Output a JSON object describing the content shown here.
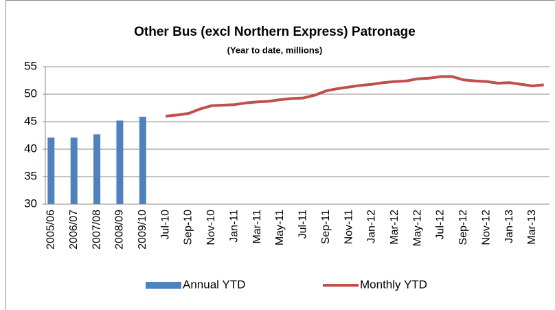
{
  "chart_data": {
    "type": "combo",
    "title": "Other Bus (excl Northern Express) Patronage",
    "subtitle": "(Year to date, millions)",
    "categories": [
      "2005/06",
      null,
      "2006/07",
      null,
      "2007/08",
      null,
      "2008/09",
      null,
      "2009/10",
      null,
      "Jul-10",
      null,
      "Sep-10",
      null,
      "Nov-10",
      null,
      "Jan-11",
      null,
      "Mar-11",
      null,
      "May-11",
      null,
      "Jul-11",
      null,
      "Sep-11",
      null,
      "Nov-11",
      null,
      "Jan-12",
      null,
      "Mar-12",
      null,
      "May-12",
      null,
      "Jul-12",
      null,
      "Sep-12",
      null,
      "Nov-12",
      null,
      "Jan-13",
      null,
      "Mar-13",
      null
    ],
    "series": [
      {
        "name": "Annual YTD",
        "type": "bar",
        "color": "#4f81bd",
        "values": [
          42.1,
          null,
          42.1,
          null,
          42.7,
          null,
          45.2,
          null,
          45.9,
          null,
          null,
          null,
          null,
          null,
          null,
          null,
          null,
          null,
          null,
          null,
          null,
          null,
          null,
          null,
          null,
          null,
          null,
          null,
          null,
          null,
          null,
          null,
          null,
          null,
          null,
          null,
          null,
          null,
          null,
          null,
          null,
          null,
          null,
          null
        ]
      },
      {
        "name": "Monthly YTD",
        "type": "line",
        "color": "#c0504d",
        "values": [
          null,
          null,
          null,
          null,
          null,
          null,
          null,
          null,
          null,
          null,
          46.0,
          46.2,
          46.5,
          47.3,
          47.9,
          48.0,
          48.1,
          48.4,
          48.6,
          48.7,
          49.0,
          49.2,
          49.3,
          49.8,
          50.6,
          51.0,
          51.3,
          51.6,
          51.8,
          52.1,
          52.3,
          52.4,
          52.8,
          52.9,
          53.2,
          53.2,
          52.6,
          52.4,
          52.3,
          52.0,
          52.1,
          51.8,
          51.5,
          51.7
        ]
      }
    ],
    "ylim": [
      30,
      55
    ],
    "yticks": [
      30,
      35,
      40,
      45,
      50,
      55
    ],
    "grid": true,
    "legend": "bottom"
  }
}
